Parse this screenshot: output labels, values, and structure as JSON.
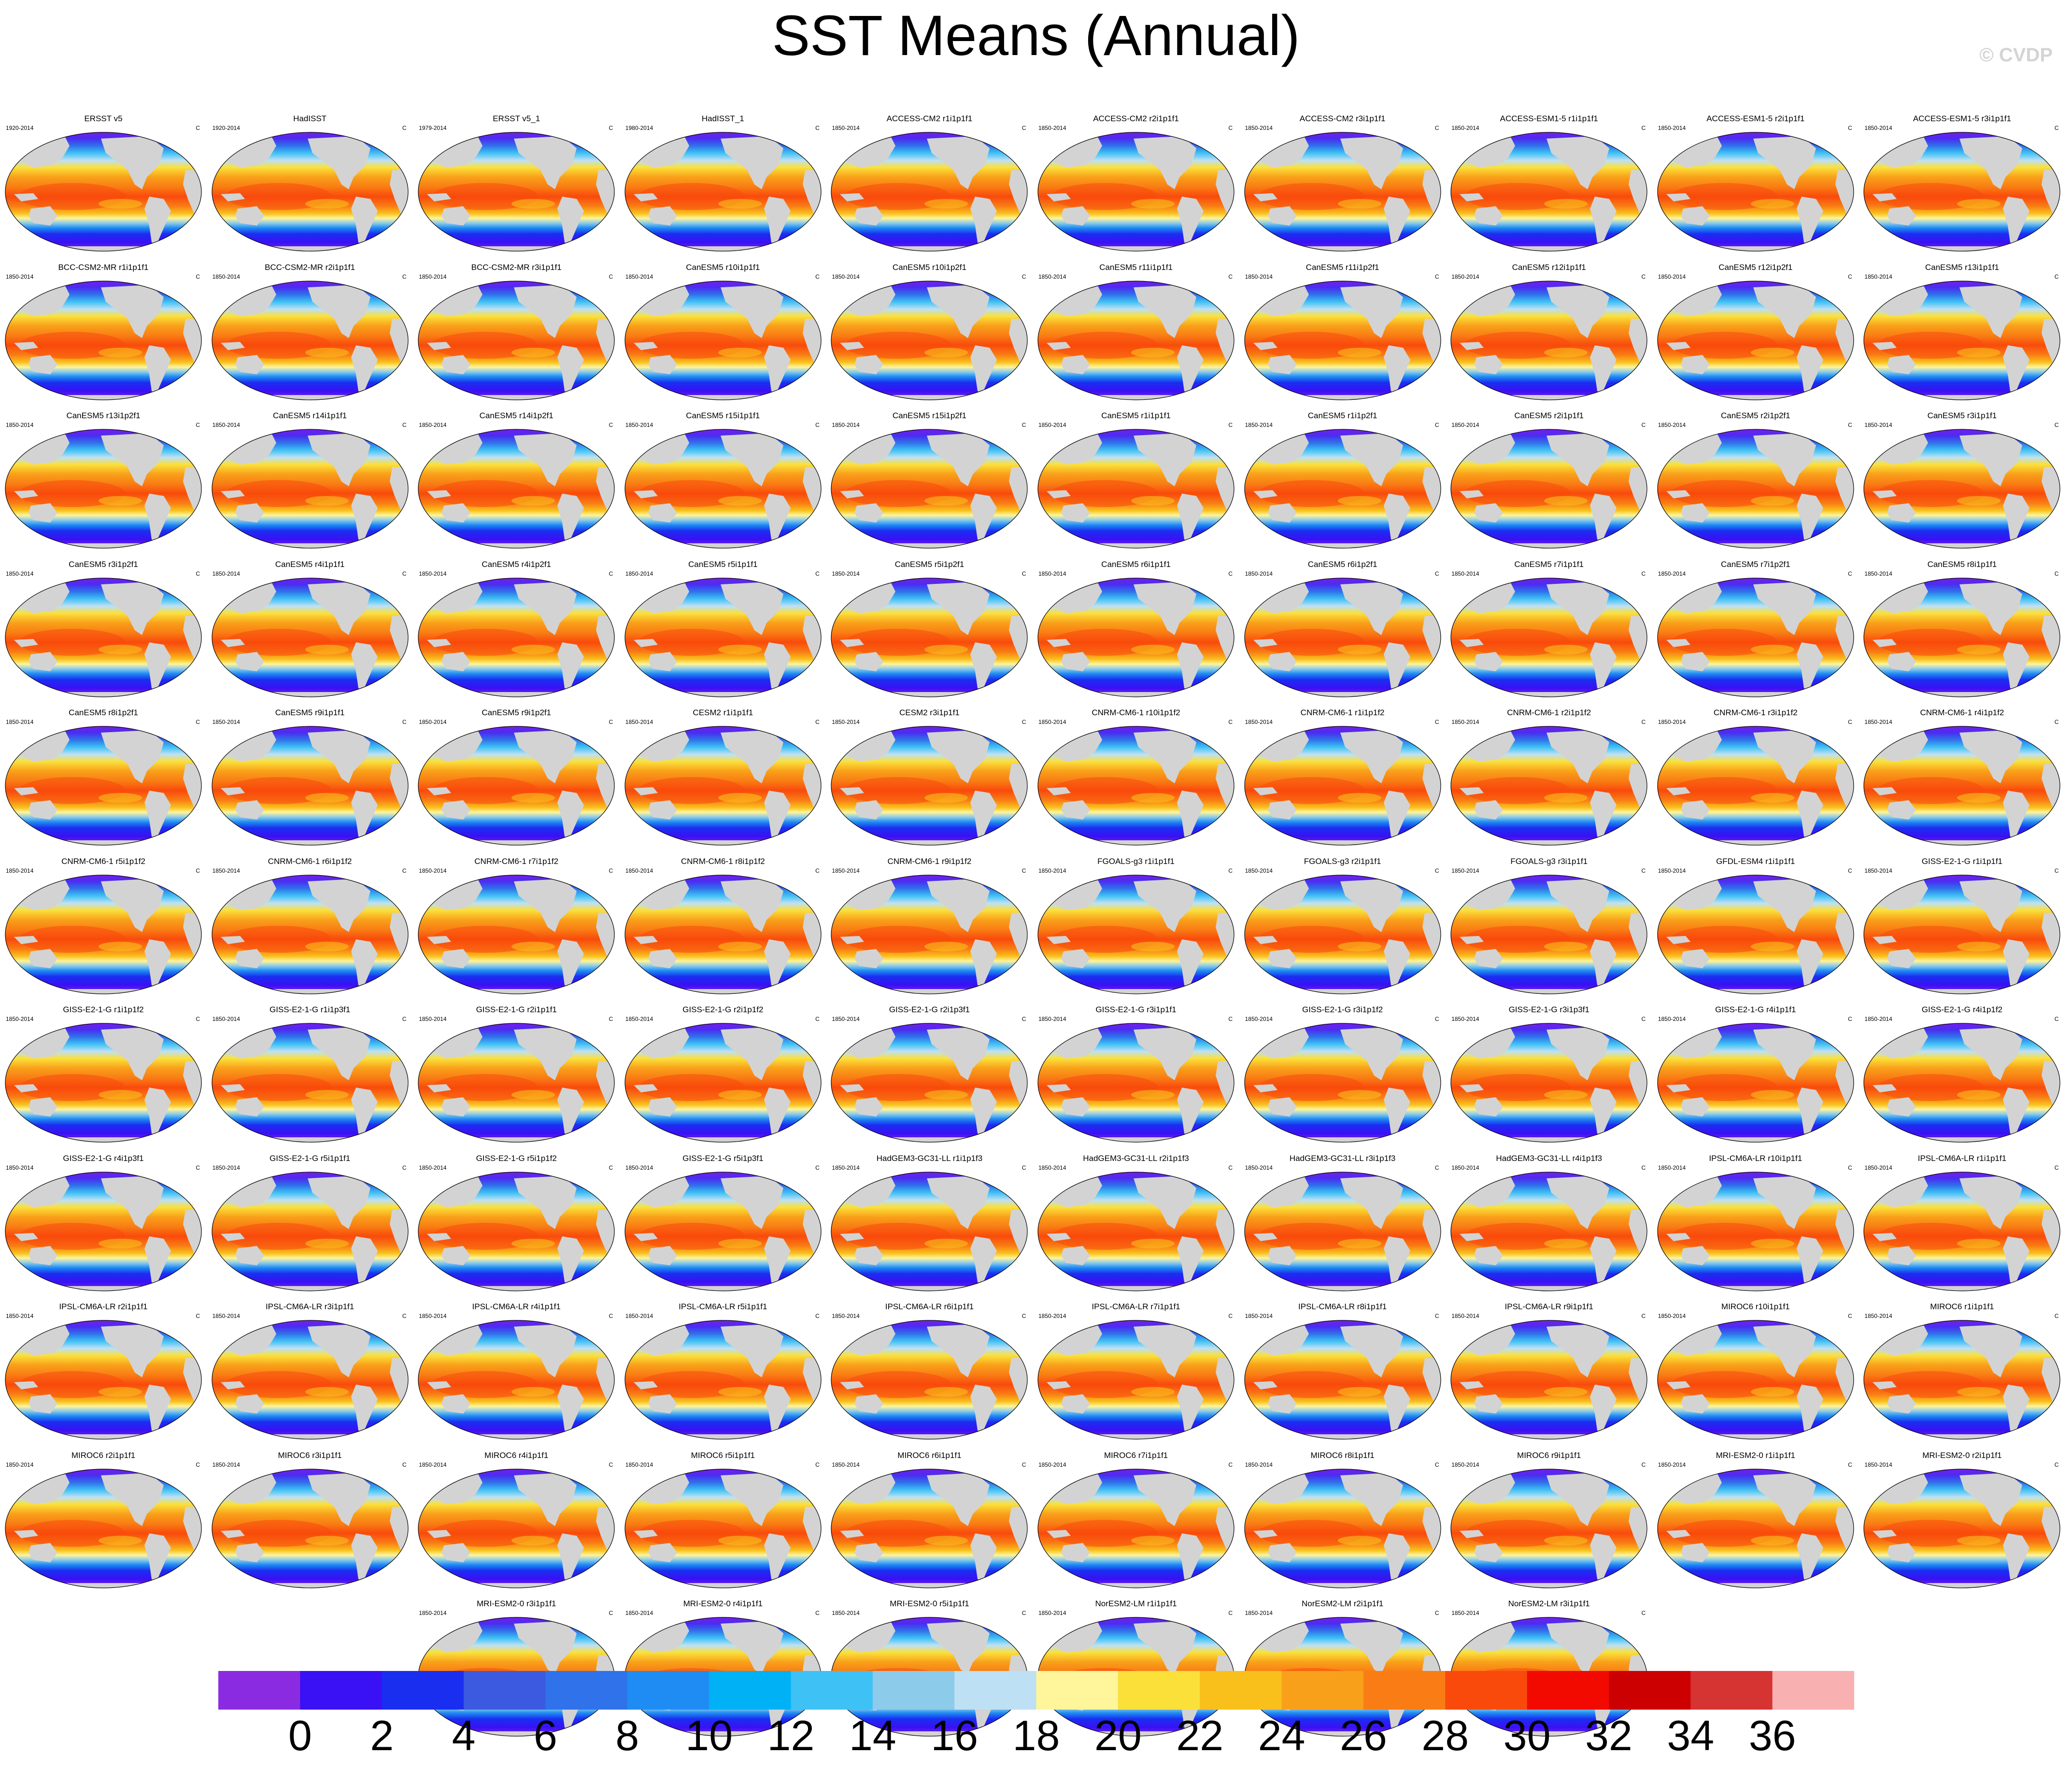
{
  "title": "SST Means (Annual)",
  "credit": "© CVDP",
  "units": "C",
  "panels": [
    {
      "name": "ERSST v5",
      "years": "1920-2014"
    },
    {
      "name": "HadISST",
      "years": "1920-2014"
    },
    {
      "name": "ERSST v5_1",
      "years": "1979-2014"
    },
    {
      "name": "HadISST_1",
      "years": "1980-2014"
    },
    {
      "name": "ACCESS-CM2 r1i1p1f1",
      "years": "1850-2014"
    },
    {
      "name": "ACCESS-CM2 r2i1p1f1",
      "years": "1850-2014"
    },
    {
      "name": "ACCESS-CM2 r3i1p1f1",
      "years": "1850-2014"
    },
    {
      "name": "ACCESS-ESM1-5 r1i1p1f1",
      "years": "1850-2014"
    },
    {
      "name": "ACCESS-ESM1-5 r2i1p1f1",
      "years": "1850-2014"
    },
    {
      "name": "ACCESS-ESM1-5 r3i1p1f1",
      "years": "1850-2014"
    },
    {
      "name": "BCC-CSM2-MR r1i1p1f1",
      "years": "1850-2014"
    },
    {
      "name": "BCC-CSM2-MR r2i1p1f1",
      "years": "1850-2014"
    },
    {
      "name": "BCC-CSM2-MR r3i1p1f1",
      "years": "1850-2014"
    },
    {
      "name": "CanESM5 r10i1p1f1",
      "years": "1850-2014"
    },
    {
      "name": "CanESM5 r10i1p2f1",
      "years": "1850-2014"
    },
    {
      "name": "CanESM5 r11i1p1f1",
      "years": "1850-2014"
    },
    {
      "name": "CanESM5 r11i1p2f1",
      "years": "1850-2014"
    },
    {
      "name": "CanESM5 r12i1p1f1",
      "years": "1850-2014"
    },
    {
      "name": "CanESM5 r12i1p2f1",
      "years": "1850-2014"
    },
    {
      "name": "CanESM5 r13i1p1f1",
      "years": "1850-2014"
    },
    {
      "name": "CanESM5 r13i1p2f1",
      "years": "1850-2014"
    },
    {
      "name": "CanESM5 r14i1p1f1",
      "years": "1850-2014"
    },
    {
      "name": "CanESM5 r14i1p2f1",
      "years": "1850-2014"
    },
    {
      "name": "CanESM5 r15i1p1f1",
      "years": "1850-2014"
    },
    {
      "name": "CanESM5 r15i1p2f1",
      "years": "1850-2014"
    },
    {
      "name": "CanESM5 r1i1p1f1",
      "years": "1850-2014"
    },
    {
      "name": "CanESM5 r1i1p2f1",
      "years": "1850-2014"
    },
    {
      "name": "CanESM5 r2i1p1f1",
      "years": "1850-2014"
    },
    {
      "name": "CanESM5 r2i1p2f1",
      "years": "1850-2014"
    },
    {
      "name": "CanESM5 r3i1p1f1",
      "years": "1850-2014"
    },
    {
      "name": "CanESM5 r3i1p2f1",
      "years": "1850-2014"
    },
    {
      "name": "CanESM5 r4i1p1f1",
      "years": "1850-2014"
    },
    {
      "name": "CanESM5 r4i1p2f1",
      "years": "1850-2014"
    },
    {
      "name": "CanESM5 r5i1p1f1",
      "years": "1850-2014"
    },
    {
      "name": "CanESM5 r5i1p2f1",
      "years": "1850-2014"
    },
    {
      "name": "CanESM5 r6i1p1f1",
      "years": "1850-2014"
    },
    {
      "name": "CanESM5 r6i1p2f1",
      "years": "1850-2014"
    },
    {
      "name": "CanESM5 r7i1p1f1",
      "years": "1850-2014"
    },
    {
      "name": "CanESM5 r7i1p2f1",
      "years": "1850-2014"
    },
    {
      "name": "CanESM5 r8i1p1f1",
      "years": "1850-2014"
    },
    {
      "name": "CanESM5 r8i1p2f1",
      "years": "1850-2014"
    },
    {
      "name": "CanESM5 r9i1p1f1",
      "years": "1850-2014"
    },
    {
      "name": "CanESM5 r9i1p2f1",
      "years": "1850-2014"
    },
    {
      "name": "CESM2 r1i1p1f1",
      "years": "1850-2014"
    },
    {
      "name": "CESM2 r3i1p1f1",
      "years": "1850-2014"
    },
    {
      "name": "CNRM-CM6-1 r10i1p1f2",
      "years": "1850-2014"
    },
    {
      "name": "CNRM-CM6-1 r1i1p1f2",
      "years": "1850-2014"
    },
    {
      "name": "CNRM-CM6-1 r2i1p1f2",
      "years": "1850-2014"
    },
    {
      "name": "CNRM-CM6-1 r3i1p1f2",
      "years": "1850-2014"
    },
    {
      "name": "CNRM-CM6-1 r4i1p1f2",
      "years": "1850-2014"
    },
    {
      "name": "CNRM-CM6-1 r5i1p1f2",
      "years": "1850-2014"
    },
    {
      "name": "CNRM-CM6-1 r6i1p1f2",
      "years": "1850-2014"
    },
    {
      "name": "CNRM-CM6-1 r7i1p1f2",
      "years": "1850-2014"
    },
    {
      "name": "CNRM-CM6-1 r8i1p1f2",
      "years": "1850-2014"
    },
    {
      "name": "CNRM-CM6-1 r9i1p1f2",
      "years": "1850-2014"
    },
    {
      "name": "FGOALS-g3 r1i1p1f1",
      "years": "1850-2014"
    },
    {
      "name": "FGOALS-g3 r2i1p1f1",
      "years": "1850-2014"
    },
    {
      "name": "FGOALS-g3 r3i1p1f1",
      "years": "1850-2014"
    },
    {
      "name": "GFDL-ESM4 r1i1p1f1",
      "years": "1850-2014"
    },
    {
      "name": "GISS-E2-1-G r1i1p1f1",
      "years": "1850-2014"
    },
    {
      "name": "GISS-E2-1-G r1i1p1f2",
      "years": "1850-2014"
    },
    {
      "name": "GISS-E2-1-G r1i1p3f1",
      "years": "1850-2014"
    },
    {
      "name": "GISS-E2-1-G r2i1p1f1",
      "years": "1850-2014"
    },
    {
      "name": "GISS-E2-1-G r2i1p1f2",
      "years": "1850-2014"
    },
    {
      "name": "GISS-E2-1-G r2i1p3f1",
      "years": "1850-2014"
    },
    {
      "name": "GISS-E2-1-G r3i1p1f1",
      "years": "1850-2014"
    },
    {
      "name": "GISS-E2-1-G r3i1p1f2",
      "years": "1850-2014"
    },
    {
      "name": "GISS-E2-1-G r3i1p3f1",
      "years": "1850-2014"
    },
    {
      "name": "GISS-E2-1-G r4i1p1f1",
      "years": "1850-2014"
    },
    {
      "name": "GISS-E2-1-G r4i1p1f2",
      "years": "1850-2014"
    },
    {
      "name": "GISS-E2-1-G r4i1p3f1",
      "years": "1850-2014"
    },
    {
      "name": "GISS-E2-1-G r5i1p1f1",
      "years": "1850-2014"
    },
    {
      "name": "GISS-E2-1-G r5i1p1f2",
      "years": "1850-2014"
    },
    {
      "name": "GISS-E2-1-G r5i1p3f1",
      "years": "1850-2014"
    },
    {
      "name": "HadGEM3-GC31-LL r1i1p1f3",
      "years": "1850-2014"
    },
    {
      "name": "HadGEM3-GC31-LL r2i1p1f3",
      "years": "1850-2014"
    },
    {
      "name": "HadGEM3-GC31-LL r3i1p1f3",
      "years": "1850-2014"
    },
    {
      "name": "HadGEM3-GC31-LL r4i1p1f3",
      "years": "1850-2014"
    },
    {
      "name": "IPSL-CM6A-LR r10i1p1f1",
      "years": "1850-2014"
    },
    {
      "name": "IPSL-CM6A-LR r1i1p1f1",
      "years": "1850-2014"
    },
    {
      "name": "IPSL-CM6A-LR r2i1p1f1",
      "years": "1850-2014"
    },
    {
      "name": "IPSL-CM6A-LR r3i1p1f1",
      "years": "1850-2014"
    },
    {
      "name": "IPSL-CM6A-LR r4i1p1f1",
      "years": "1850-2014"
    },
    {
      "name": "IPSL-CM6A-LR r5i1p1f1",
      "years": "1850-2014"
    },
    {
      "name": "IPSL-CM6A-LR r6i1p1f1",
      "years": "1850-2014"
    },
    {
      "name": "IPSL-CM6A-LR r7i1p1f1",
      "years": "1850-2014"
    },
    {
      "name": "IPSL-CM6A-LR r8i1p1f1",
      "years": "1850-2014"
    },
    {
      "name": "IPSL-CM6A-LR r9i1p1f1",
      "years": "1850-2014"
    },
    {
      "name": "MIROC6 r10i1p1f1",
      "years": "1850-2014"
    },
    {
      "name": "MIROC6 r1i1p1f1",
      "years": "1850-2014"
    },
    {
      "name": "MIROC6 r2i1p1f1",
      "years": "1850-2014"
    },
    {
      "name": "MIROC6 r3i1p1f1",
      "years": "1850-2014"
    },
    {
      "name": "MIROC6 r4i1p1f1",
      "years": "1850-2014"
    },
    {
      "name": "MIROC6 r5i1p1f1",
      "years": "1850-2014"
    },
    {
      "name": "MIROC6 r6i1p1f1",
      "years": "1850-2014"
    },
    {
      "name": "MIROC6 r7i1p1f1",
      "years": "1850-2014"
    },
    {
      "name": "MIROC6 r8i1p1f1",
      "years": "1850-2014"
    },
    {
      "name": "MIROC6 r9i1p1f1",
      "years": "1850-2014"
    },
    {
      "name": "MRI-ESM2-0 r1i1p1f1",
      "years": "1850-2014"
    },
    {
      "name": "MRI-ESM2-0 r2i1p1f1",
      "years": "1850-2014"
    },
    {
      "name": "MRI-ESM2-0 r3i1p1f1",
      "years": "1850-2014"
    },
    {
      "name": "MRI-ESM2-0 r4i1p1f1",
      "years": "1850-2014"
    },
    {
      "name": "MRI-ESM2-0 r5i1p1f1",
      "years": "1850-2014"
    },
    {
      "name": "NorESM2-LM r1i1p1f1",
      "years": "1850-2014"
    },
    {
      "name": "NorESM2-LM r2i1p1f1",
      "years": "1850-2014"
    },
    {
      "name": "NorESM2-LM r3i1p1f1",
      "years": "1850-2014"
    }
  ],
  "colorbar": {
    "labels": [
      "0",
      "2",
      "4",
      "6",
      "8",
      "10",
      "12",
      "14",
      "16",
      "18",
      "20",
      "22",
      "24",
      "26",
      "28",
      "30",
      "32",
      "34",
      "36"
    ],
    "colors": [
      "#8a2be2",
      "#3a10f5",
      "#1a2ef0",
      "#3c5adf",
      "#2f72ea",
      "#1e8cf2",
      "#00b2f5",
      "#3ec1f5",
      "#8ccbea",
      "#bee0f4",
      "#fff59a",
      "#fbe03a",
      "#f9c01c",
      "#f9a01a",
      "#f97d14",
      "#f94a0c",
      "#f20a00",
      "#cc0000",
      "#d63333",
      "#f8b0b0"
    ]
  },
  "map_colors": {
    "land": "#d3d3d3",
    "ice_polar": "#7b1ee6",
    "cold": "#3a2bf0",
    "cool_blue": "#2f72ea",
    "sky": "#3ec1f5",
    "pale": "#bee0f4",
    "yellow": "#fbe03a",
    "warm_orange": "#f9a01a",
    "hot_orange": "#f97d14",
    "red": "#f94a0c"
  }
}
